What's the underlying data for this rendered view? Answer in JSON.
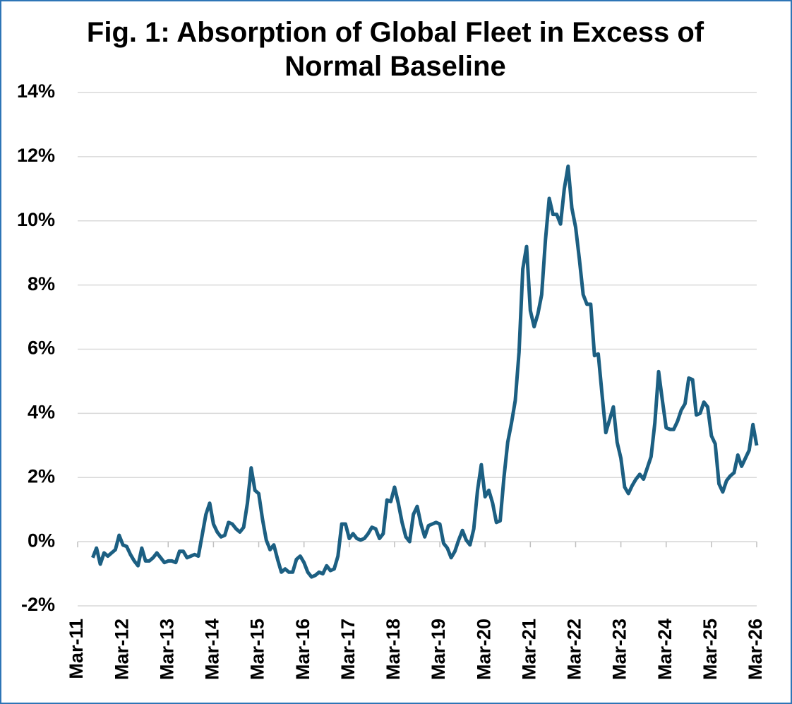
{
  "chart_data": {
    "type": "line",
    "title": "Fig. 1: Absorption of Global Fleet in Excess of Normal Baseline",
    "categories": [
      "Mar-11",
      null,
      null,
      null,
      null,
      null,
      null,
      null,
      null,
      null,
      null,
      null,
      "Mar-12",
      null,
      null,
      null,
      null,
      null,
      null,
      null,
      null,
      null,
      null,
      null,
      "Mar-13",
      null,
      null,
      null,
      null,
      null,
      null,
      null,
      null,
      null,
      null,
      null,
      "Mar-14",
      null,
      null,
      null,
      null,
      null,
      null,
      null,
      null,
      null,
      null,
      null,
      "Mar-15",
      null,
      null,
      null,
      null,
      null,
      null,
      null,
      null,
      null,
      null,
      null,
      "Mar-16",
      null,
      null,
      null,
      null,
      null,
      null,
      null,
      null,
      null,
      null,
      null,
      "Mar-17",
      null,
      null,
      null,
      null,
      null,
      null,
      null,
      null,
      null,
      null,
      null,
      "Mar-18",
      null,
      null,
      null,
      null,
      null,
      null,
      null,
      null,
      null,
      null,
      null,
      "Mar-19",
      null,
      null,
      null,
      null,
      null,
      null,
      null,
      null,
      null,
      null,
      null,
      "Mar-20",
      null,
      null,
      null,
      null,
      null,
      null,
      null,
      null,
      null,
      null,
      null,
      "Mar-21",
      null,
      null,
      null,
      null,
      null,
      null,
      null,
      null,
      null,
      null,
      null,
      "Mar-22",
      null,
      null,
      null,
      null,
      null,
      null,
      null,
      null,
      null,
      null,
      null,
      "Mar-23",
      null,
      null,
      null,
      null,
      null,
      null,
      null,
      null,
      null,
      null,
      null,
      "Mar-24",
      null,
      null,
      null,
      null,
      null,
      null,
      null,
      null,
      null,
      null,
      null,
      "Mar-25",
      null,
      null,
      null,
      null,
      null,
      null,
      null,
      null,
      null,
      null,
      null,
      "Mar-26"
    ],
    "values": [
      null,
      null,
      null,
      null,
      -0.5,
      -0.2,
      -0.7,
      -0.35,
      -0.45,
      -0.35,
      -0.25,
      0.2,
      -0.1,
      -0.15,
      -0.4,
      -0.6,
      -0.75,
      -0.2,
      -0.6,
      -0.6,
      -0.5,
      -0.35,
      -0.5,
      -0.65,
      -0.6,
      -0.6,
      -0.65,
      -0.3,
      -0.3,
      -0.5,
      -0.45,
      -0.4,
      -0.45,
      0.2,
      0.85,
      1.2,
      0.55,
      0.3,
      0.15,
      0.2,
      0.6,
      0.55,
      0.4,
      0.3,
      0.45,
      1.2,
      2.3,
      1.6,
      1.5,
      0.7,
      0.05,
      -0.25,
      -0.1,
      -0.55,
      -0.95,
      -0.85,
      -0.95,
      -0.95,
      -0.55,
      -0.45,
      -0.65,
      -0.95,
      -1.1,
      -1.05,
      -0.95,
      -1.0,
      -0.75,
      -0.9,
      -0.85,
      -0.45,
      0.55,
      0.55,
      0.1,
      0.25,
      0.1,
      0.05,
      0.1,
      0.25,
      0.45,
      0.4,
      0.1,
      0.25,
      1.3,
      1.25,
      1.7,
      1.2,
      0.6,
      0.15,
      0.0,
      0.85,
      1.1,
      0.55,
      0.15,
      0.5,
      0.55,
      0.6,
      0.55,
      -0.05,
      -0.2,
      -0.5,
      -0.3,
      0.05,
      0.35,
      0.05,
      -0.1,
      0.4,
      1.6,
      2.4,
      1.4,
      1.6,
      1.2,
      0.6,
      0.65,
      2.0,
      3.1,
      3.7,
      4.4,
      5.9,
      8.5,
      9.2,
      7.2,
      6.7,
      7.1,
      7.7,
      9.4,
      10.7,
      10.2,
      10.2,
      9.9,
      11.0,
      11.7,
      10.4,
      9.8,
      8.8,
      7.7,
      7.4,
      7.4,
      5.8,
      5.85,
      4.6,
      3.4,
      3.8,
      4.2,
      3.1,
      2.6,
      1.7,
      1.5,
      1.75,
      1.95,
      2.1,
      1.95,
      2.3,
      2.65,
      3.7,
      5.3,
      4.4,
      3.55,
      3.5,
      3.5,
      3.75,
      4.1,
      4.3,
      5.1,
      5.05,
      3.95,
      4.0,
      4.35,
      4.2,
      3.3,
      3.05,
      1.8,
      1.55,
      1.9,
      2.05,
      2.15,
      2.7,
      2.35,
      2.6,
      2.85,
      3.65,
      3.0
    ],
    "color": "#1c5f82",
    "ylim": [
      -2,
      14
    ],
    "yticks": [
      {
        "value": -2,
        "label": "-2%"
      },
      {
        "value": 0,
        "label": "0%"
      },
      {
        "value": 2,
        "label": "2%"
      },
      {
        "value": 4,
        "label": "4%"
      },
      {
        "value": 6,
        "label": "6%"
      },
      {
        "value": 8,
        "label": "8%"
      },
      {
        "value": 10,
        "label": "10%"
      },
      {
        "value": 12,
        "label": "12%"
      },
      {
        "value": 14,
        "label": "14%"
      }
    ],
    "grid": true
  }
}
